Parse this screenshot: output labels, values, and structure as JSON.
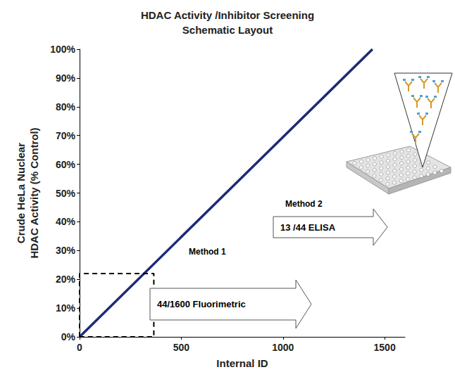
{
  "chart_data": {
    "type": "line",
    "title": "HDAC Activity /Inhibitor Screening\nSchematic Layout",
    "x_label": "Internal ID",
    "y_label": "Crude HeLa Nuclear\nHDAC Activity (% Control)",
    "x": [
      0,
      1440
    ],
    "values": [
      0,
      100
    ],
    "color": "#1c2a78",
    "xlim": [
      0,
      1600
    ],
    "xticks": [
      0,
      500,
      1000,
      1500
    ],
    "ylim": [
      0,
      100
    ],
    "yticks": [
      {
        "value": 0,
        "label": "0%"
      },
      {
        "value": 10,
        "label": "10%"
      },
      {
        "value": 20,
        "label": "20%"
      },
      {
        "value": 30,
        "label": "30%"
      },
      {
        "value": 40,
        "label": "40%"
      },
      {
        "value": 50,
        "label": "50%"
      },
      {
        "value": 60,
        "label": "60%"
      },
      {
        "value": 70,
        "label": "70%"
      },
      {
        "value": 80,
        "label": "80%"
      },
      {
        "value": 90,
        "label": "90%"
      },
      {
        "value": 100,
        "label": "100%"
      }
    ],
    "grid": false,
    "highlight_box": {
      "x": [
        0,
        365
      ],
      "y": [
        0,
        22
      ],
      "line_style": "dashed"
    },
    "annotations": [
      {
        "title": "Method 1",
        "text": "44/1600 Fluorimetric"
      },
      {
        "title": "Method 2",
        "text": "13 /44 ELISA"
      }
    ]
  }
}
